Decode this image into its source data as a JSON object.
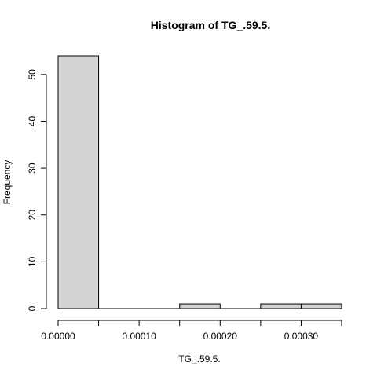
{
  "chart_data": {
    "type": "bar",
    "title": "Histogram of TG_.59.5.",
    "xlabel": "TG_.59.5.",
    "ylabel": "Frequency",
    "bins": [
      {
        "start": 0.0,
        "end": 5e-05,
        "count": 54
      },
      {
        "start": 5e-05,
        "end": 0.0001,
        "count": 0
      },
      {
        "start": 0.0001,
        "end": 0.00015,
        "count": 0
      },
      {
        "start": 0.00015,
        "end": 0.0002,
        "count": 1
      },
      {
        "start": 0.0002,
        "end": 0.00025,
        "count": 0
      },
      {
        "start": 0.00025,
        "end": 0.0003,
        "count": 1
      },
      {
        "start": 0.0003,
        "end": 0.00035,
        "count": 1
      }
    ],
    "xlim": [
      0,
      0.00035
    ],
    "ylim": [
      0,
      54
    ],
    "x_ticks": [
      0,
      5e-05,
      0.0001,
      0.00015,
      0.0002,
      0.00025,
      0.0003,
      0.00035
    ],
    "x_tick_labels": [
      {
        "value": 0,
        "label": "0.00000"
      },
      {
        "value": 0.0001,
        "label": "0.00010"
      },
      {
        "value": 0.0002,
        "label": "0.00020"
      },
      {
        "value": 0.0003,
        "label": "0.00030"
      }
    ],
    "y_ticks": [
      0,
      10,
      20,
      30,
      40,
      50
    ],
    "y_tick_labels": [
      "0",
      "10",
      "20",
      "30",
      "40",
      "50"
    ],
    "grid": false,
    "bar_color": "#d3d3d3",
    "edge_color": "#000000"
  }
}
